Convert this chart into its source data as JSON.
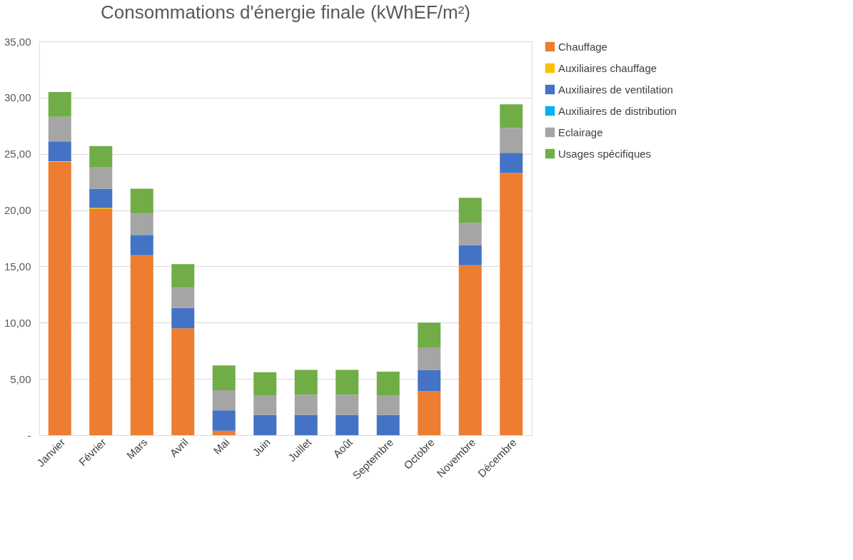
{
  "chart_data": {
    "type": "bar",
    "stacked": true,
    "title": "Consommations d'énergie finale (kWhEF/m²)",
    "categories": [
      "Janvier",
      "Février",
      "Mars",
      "Avril",
      "Mai",
      "Juin",
      "Juillet",
      "Août",
      "Septembre",
      "Octobre",
      "Novembre",
      "Décembre"
    ],
    "series": [
      {
        "name": "Chauffage",
        "color": "#ed7d31",
        "values": [
          24.3,
          20.1,
          16.0,
          9.5,
          0.4,
          0,
          0,
          0,
          0,
          3.9,
          15.1,
          23.3
        ]
      },
      {
        "name": "Auxiliaires chauffage",
        "color": "#ffc000",
        "values": [
          0.05,
          0.1,
          0,
          0,
          0,
          0,
          0,
          0,
          0,
          0,
          0,
          0
        ]
      },
      {
        "name": "Auxiliaires de ventilation",
        "color": "#4472c4",
        "values": [
          1.75,
          1.7,
          1.75,
          1.8,
          1.8,
          1.8,
          1.8,
          1.8,
          1.8,
          1.9,
          1.8,
          1.8
        ]
      },
      {
        "name": "Auxiliaires de distribution",
        "color": "#00b0f0",
        "values": [
          0,
          0,
          0.05,
          0,
          0,
          0,
          0,
          0,
          0,
          0,
          0,
          0
        ]
      },
      {
        "name": "Eclairage",
        "color": "#a5a5a5",
        "values": [
          2.2,
          1.9,
          1.9,
          1.8,
          1.8,
          1.7,
          1.8,
          1.8,
          1.75,
          2.0,
          2.0,
          2.2
        ]
      },
      {
        "name": "Usages spécifiques",
        "color": "#70ad47",
        "values": [
          2.2,
          1.9,
          2.2,
          2.1,
          2.2,
          2.1,
          2.2,
          2.2,
          2.1,
          2.2,
          2.2,
          2.1
        ]
      }
    ],
    "ylim": [
      0,
      35
    ],
    "yticks": [
      {
        "value": 0,
        "label": "-"
      },
      {
        "value": 5,
        "label": "5,00"
      },
      {
        "value": 10,
        "label": "10,00"
      },
      {
        "value": 15,
        "label": "15,00"
      },
      {
        "value": 20,
        "label": "20,00"
      },
      {
        "value": 25,
        "label": "25,00"
      },
      {
        "value": 30,
        "label": "30,00"
      },
      {
        "value": 35,
        "label": "35,00"
      }
    ],
    "grid": "y",
    "legend": "right"
  }
}
